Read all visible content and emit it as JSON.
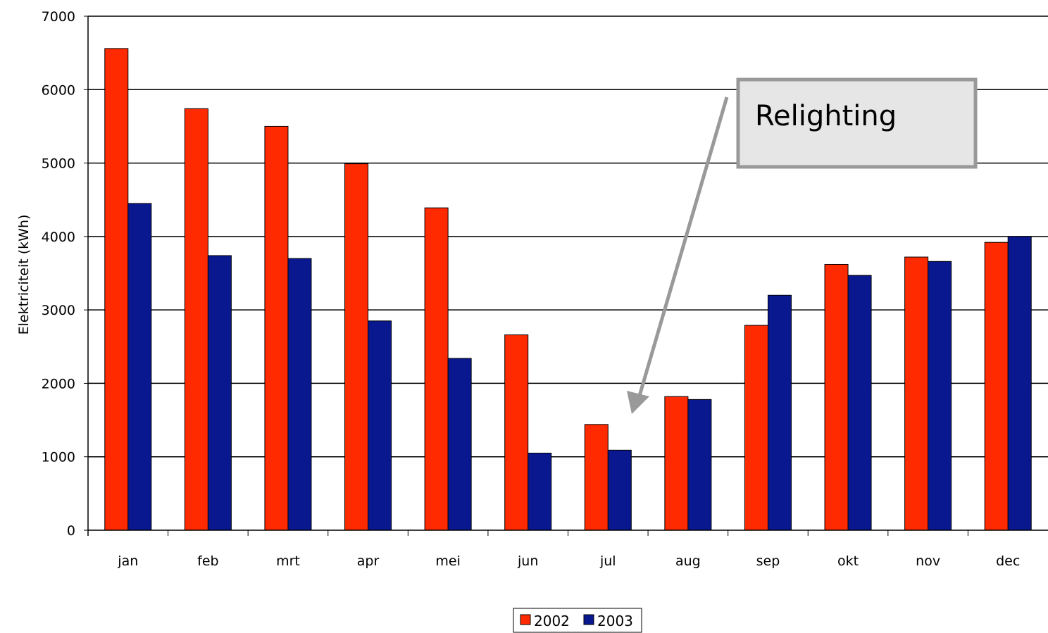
{
  "chart_data": {
    "type": "bar",
    "title": "",
    "xlabel": "",
    "ylabel": "Elektriciteit (kWh)",
    "ylim": [
      0,
      7000
    ],
    "yticks": [
      0,
      1000,
      2000,
      3000,
      4000,
      5000,
      6000,
      7000
    ],
    "grid": true,
    "legend_position": "bottom",
    "categories": [
      "jan",
      "feb",
      "mrt",
      "apr",
      "mei",
      "jun",
      "jul",
      "aug",
      "sep",
      "okt",
      "nov",
      "dec"
    ],
    "series": [
      {
        "name": "2002",
        "color": "#ff2a00",
        "values": [
          6560,
          5740,
          5500,
          4990,
          4390,
          2660,
          1440,
          1820,
          2790,
          3620,
          3720,
          3920
        ]
      },
      {
        "name": "2003",
        "color": "#0a1890",
        "values": [
          4450,
          3740,
          3700,
          2850,
          2340,
          1050,
          1090,
          1780,
          3200,
          3470,
          3660,
          4000
        ]
      }
    ],
    "annotation": {
      "text": "Relighting",
      "points_to": "jul"
    }
  }
}
